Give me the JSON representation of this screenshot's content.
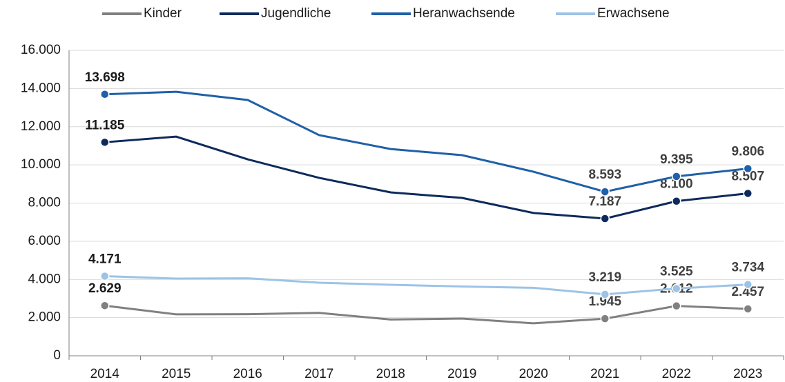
{
  "chart_data": {
    "type": "line",
    "categories": [
      "2014",
      "2015",
      "2016",
      "2017",
      "2018",
      "2019",
      "2020",
      "2021",
      "2022",
      "2023"
    ],
    "series": [
      {
        "name": "Kinder",
        "color": "#808080",
        "values": [
          2629,
          2170,
          2180,
          2250,
          1900,
          1950,
          1700,
          1945,
          2612,
          2457
        ],
        "value_labels": [
          "2.629",
          null,
          null,
          null,
          null,
          null,
          null,
          "1.945",
          "2.612",
          "2.457"
        ]
      },
      {
        "name": "Jugendliche",
        "color": "#0e2a5c",
        "values": [
          11185,
          11480,
          10290,
          9320,
          8560,
          8270,
          7480,
          7187,
          8100,
          8507
        ],
        "value_labels": [
          "11.185",
          null,
          null,
          null,
          null,
          null,
          null,
          "7.187",
          "8.100",
          "8.507"
        ]
      },
      {
        "name": "Heranwachsende",
        "color": "#1f60a8",
        "values": [
          13698,
          13830,
          13400,
          11560,
          10830,
          10510,
          9640,
          8593,
          9395,
          9806
        ],
        "value_labels": [
          "13.698",
          null,
          null,
          null,
          null,
          null,
          null,
          "8.593",
          "9.395",
          "9.806"
        ]
      },
      {
        "name": "Erwachsene",
        "color": "#9dc3e6",
        "values": [
          4171,
          4045,
          4060,
          3830,
          3720,
          3630,
          3560,
          3219,
          3525,
          3734
        ],
        "value_labels": [
          "4.171",
          null,
          null,
          null,
          null,
          null,
          null,
          "3.219",
          "3.525",
          "3.734"
        ]
      }
    ],
    "ylim": [
      0,
      16000
    ],
    "yticks": [
      0,
      {
        "value": 2000,
        "label": "2.000"
      },
      {
        "value": 4000,
        "label": "4.000"
      },
      {
        "value": 6000,
        "label": "6.000"
      },
      {
        "value": 8000,
        "label": "8.000"
      },
      {
        "value": 10000,
        "label": "10.000"
      },
      {
        "value": 12000,
        "label": "12.000"
      },
      {
        "value": 14000,
        "label": "14.000"
      },
      {
        "value": 16000,
        "label": "16.000"
      }
    ],
    "grid": true,
    "legend": "top"
  }
}
